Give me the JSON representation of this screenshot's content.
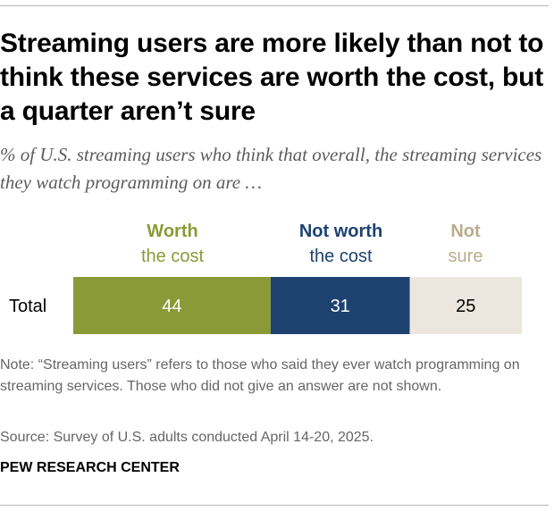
{
  "title": "Streaming users are more likely than not to think these services are worth the cost, but a quarter aren’t sure",
  "subtitle": "% of U.S. streaming users who think that overall, the streaming services they watch programming on are …",
  "legend": [
    {
      "line1": "Worth",
      "line2": "the cost",
      "color": "#8a9a36"
    },
    {
      "line1": "Not worth",
      "line2": "the cost",
      "color": "#1d426f"
    },
    {
      "line1": "Not",
      "line2": "sure",
      "color": "#b9ad8c"
    }
  ],
  "chart_data": {
    "type": "bar",
    "orientation": "horizontal",
    "stacked": true,
    "categories": [
      "Total"
    ],
    "series": [
      {
        "name": "Worth the cost",
        "values": [
          44
        ],
        "color": "#8a9a36",
        "label_color": "#ffffff"
      },
      {
        "name": "Not worth the cost",
        "values": [
          31
        ],
        "color": "#1d426f",
        "label_color": "#ffffff"
      },
      {
        "name": "Not sure",
        "values": [
          25
        ],
        "color": "#ebe7de",
        "label_color": "#000000"
      }
    ],
    "xlim": [
      0,
      100
    ],
    "grid": false
  },
  "note": "Note: “Streaming users” refers to those who said they ever watch programming on streaming services. Those who did not give an answer are not shown.",
  "source": "Source: Survey of U.S. adults conducted April 14-20, 2025.",
  "organization": "PEW RESEARCH CENTER"
}
